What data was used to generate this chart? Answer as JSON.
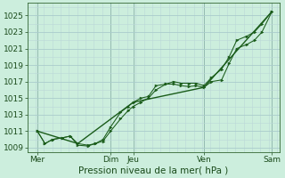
{
  "xlabel": "Pression niveau de la mer( hPa )",
  "bg_color": "#cceedd",
  "grid_color_major": "#aacccc",
  "grid_color_minor": "#bbd8d8",
  "line_color": "#1a5c1a",
  "ylim": [
    1008.5,
    1026.5
  ],
  "yticks": [
    1009,
    1011,
    1013,
    1015,
    1017,
    1019,
    1021,
    1023,
    1025
  ],
  "xlim": [
    0,
    100
  ],
  "xtick_positions": [
    4,
    33,
    42,
    70,
    97
  ],
  "xtick_labels": [
    "Mer",
    "Dim",
    "Jeu",
    "Ven",
    "Sam"
  ],
  "vline_positions": [
    4,
    33,
    42,
    70,
    97
  ],
  "series1_x": [
    4,
    7,
    10,
    14,
    17,
    20,
    24,
    27,
    30,
    33,
    37,
    40,
    42,
    45,
    48,
    51,
    55,
    58,
    61,
    64,
    67,
    70,
    73,
    77,
    80,
    83,
    87,
    90,
    93,
    97
  ],
  "series1_y": [
    1011,
    1009.5,
    1010.0,
    1010.2,
    1010.4,
    1009.5,
    1009.3,
    1009.5,
    1010.0,
    1011.5,
    1013.3,
    1014.0,
    1014.5,
    1015.0,
    1015.2,
    1016.5,
    1016.7,
    1016.7,
    1016.5,
    1016.4,
    1016.5,
    1016.3,
    1017.0,
    1017.2,
    1019.2,
    1021.0,
    1021.5,
    1022.0,
    1023.0,
    1025.5
  ],
  "series2_x": [
    4,
    7,
    10,
    14,
    17,
    20,
    24,
    27,
    30,
    33,
    37,
    40,
    42,
    45,
    48,
    51,
    55,
    58,
    61,
    64,
    67,
    70,
    73,
    77,
    80,
    83,
    87,
    90,
    93,
    97
  ],
  "series2_y": [
    1011,
    1009.5,
    1010.0,
    1010.2,
    1010.4,
    1009.3,
    1009.2,
    1009.5,
    1009.8,
    1011.0,
    1012.5,
    1013.5,
    1014.0,
    1014.5,
    1015.0,
    1016.0,
    1016.7,
    1017.0,
    1016.8,
    1016.8,
    1016.8,
    1016.5,
    1017.5,
    1018.5,
    1020.0,
    1022.0,
    1022.5,
    1023.0,
    1024.0,
    1025.5
  ],
  "series3_x": [
    4,
    20,
    42,
    70,
    97
  ],
  "series3_y": [
    1011,
    1009.5,
    1014.5,
    1016.3,
    1025.5
  ]
}
